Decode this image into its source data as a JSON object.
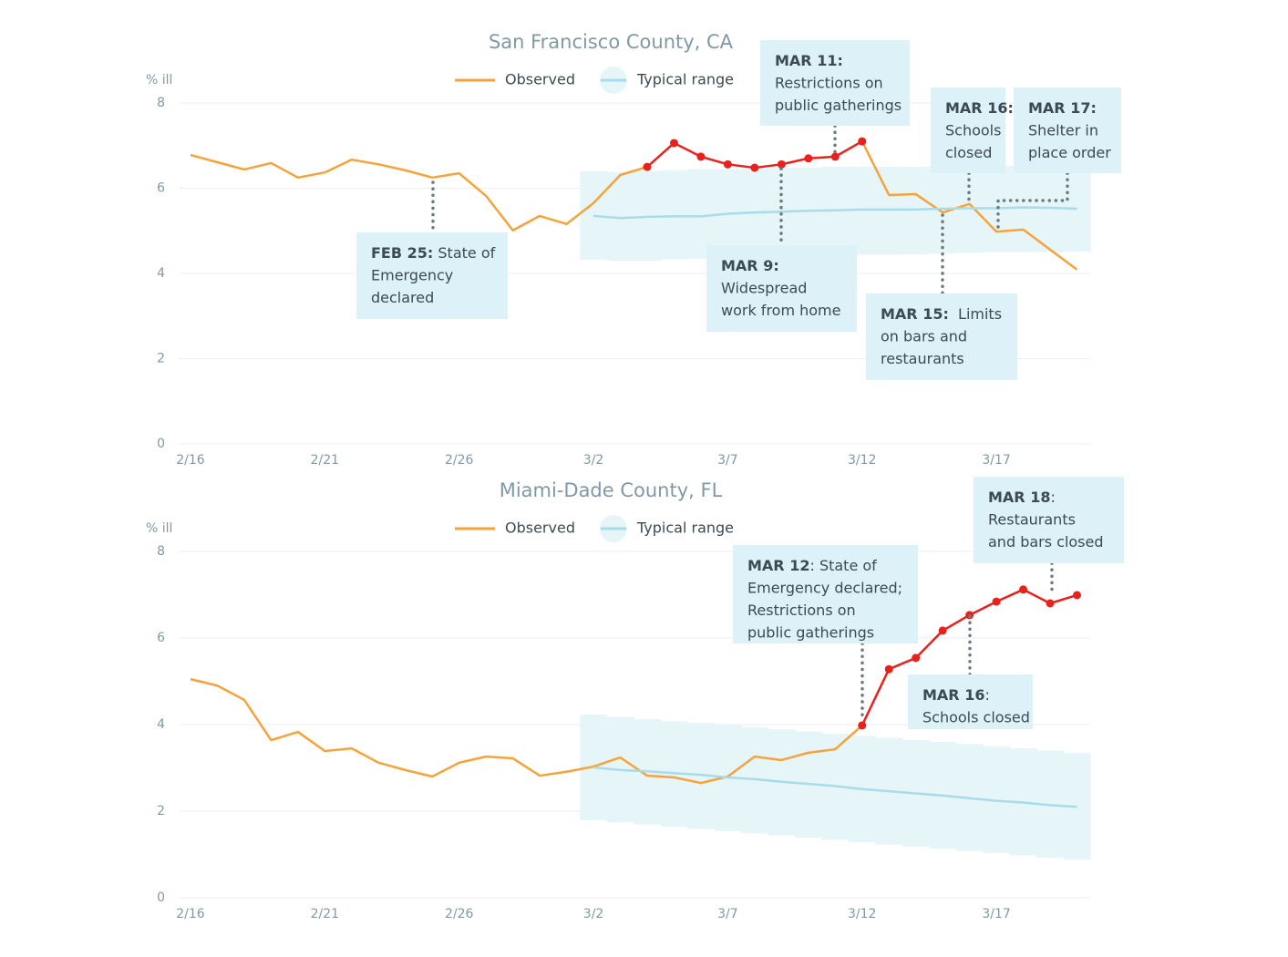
{
  "chart_data": [
    {
      "type": "line",
      "title": "San Francisco County, CA",
      "ylabel": "% ill",
      "categories": [
        "2/16",
        null,
        null,
        null,
        null,
        "2/21",
        null,
        null,
        null,
        null,
        "2/26",
        null,
        null,
        null,
        null,
        "3/2",
        null,
        null,
        null,
        null,
        "3/7",
        null,
        null,
        null,
        null,
        "3/12",
        null,
        null,
        null,
        null,
        "3/17",
        null,
        null,
        null
      ],
      "ylim": [
        0,
        8
      ],
      "yticks": [
        0,
        2,
        4,
        6,
        8
      ],
      "grid": true,
      "highlight_color": "#e8211c",
      "highlight_start": 17,
      "highlight_end": 25,
      "series": [
        {
          "name": "Observed",
          "color": "#f5a33a",
          "values": [
            6.78,
            6.61,
            6.44,
            6.59,
            6.25,
            6.37,
            6.67,
            6.56,
            6.42,
            6.25,
            6.35,
            5.82,
            5.01,
            5.35,
            5.16,
            5.65,
            6.31,
            6.5,
            7.06,
            6.74,
            6.56,
            6.48,
            6.56,
            6.7,
            6.74,
            7.1,
            5.84,
            5.86,
            5.43,
            5.63,
            4.98,
            5.03,
            4.56,
            4.09
          ]
        },
        {
          "name": "Typical range",
          "color": "#a8dcea",
          "band_color": "#e6f5f8",
          "values": [
            null,
            null,
            null,
            null,
            null,
            null,
            null,
            null,
            null,
            null,
            null,
            null,
            null,
            null,
            null,
            5.35,
            5.3,
            5.33,
            5.34,
            5.34,
            5.4,
            5.43,
            5.45,
            5.47,
            5.48,
            5.5,
            5.5,
            5.5,
            5.52,
            5.53,
            5.53,
            5.55,
            5.54,
            5.52
          ],
          "upper": [
            null,
            null,
            null,
            null,
            null,
            null,
            null,
            null,
            null,
            null,
            null,
            null,
            null,
            null,
            null,
            6.4,
            6.38,
            6.4,
            6.42,
            6.45,
            6.45,
            6.47,
            6.48,
            6.48,
            6.5,
            6.5,
            6.5,
            6.5,
            6.52,
            6.52,
            6.52,
            6.52,
            6.52,
            6.52
          ],
          "lower": [
            null,
            null,
            null,
            null,
            null,
            null,
            null,
            null,
            null,
            null,
            null,
            null,
            null,
            null,
            null,
            4.32,
            4.3,
            4.3,
            4.33,
            4.35,
            4.37,
            4.38,
            4.4,
            4.4,
            4.42,
            4.44,
            4.44,
            4.45,
            4.47,
            4.48,
            4.5,
            4.5,
            4.5,
            4.51
          ]
        }
      ],
      "annotations": [
        {
          "label": "FEB 25:",
          "lines": [
            " State of",
            "Emergency",
            "declared"
          ]
        },
        {
          "label": "MAR 9:",
          "lines": [
            "Widespread",
            "work from home"
          ]
        },
        {
          "label": "MAR 11:",
          "lines": [
            "Restrictions on",
            "public gatherings"
          ]
        },
        {
          "label": "MAR 15:",
          "lines": [
            "  Limits",
            "on bars and",
            "restaurants"
          ]
        },
        {
          "label": "MAR 16:",
          "lines": [
            "Schools",
            "closed"
          ]
        },
        {
          "label": "MAR 17:",
          "lines": [
            "Shelter in",
            "place order"
          ]
        }
      ]
    },
    {
      "type": "line",
      "title": "Miami-Dade County, FL",
      "ylabel": "% ill",
      "categories": [
        "2/16",
        null,
        null,
        null,
        null,
        "2/21",
        null,
        null,
        null,
        null,
        "2/26",
        null,
        null,
        null,
        null,
        "3/2",
        null,
        null,
        null,
        null,
        "3/7",
        null,
        null,
        null,
        null,
        "3/12",
        null,
        null,
        null,
        null,
        "3/17",
        null,
        null,
        null
      ],
      "ylim": [
        0,
        8
      ],
      "yticks": [
        0,
        2,
        4,
        6,
        8
      ],
      "grid": true,
      "highlight_color": "#e8211c",
      "highlight_start": 25,
      "highlight_end": 33,
      "series": [
        {
          "name": "Observed",
          "color": "#f5a33a",
          "values": [
            5.05,
            4.9,
            4.57,
            3.64,
            3.83,
            3.39,
            3.45,
            3.12,
            2.95,
            2.8,
            3.12,
            3.26,
            3.22,
            2.82,
            2.91,
            3.03,
            3.24,
            2.82,
            2.78,
            2.65,
            2.8,
            3.26,
            3.18,
            3.35,
            3.43,
            3.98,
            5.28,
            5.54,
            6.17,
            6.53,
            6.84,
            7.12,
            6.8,
            6.99
          ]
        },
        {
          "name": "Typical range",
          "color": "#a8dcea",
          "band_color": "#e6f5f8",
          "values": [
            null,
            null,
            null,
            null,
            null,
            null,
            null,
            null,
            null,
            null,
            null,
            null,
            null,
            null,
            null,
            3.01,
            2.95,
            2.92,
            2.88,
            2.84,
            2.78,
            2.74,
            2.68,
            2.63,
            2.58,
            2.51,
            2.46,
            2.41,
            2.36,
            2.3,
            2.24,
            2.2,
            2.14,
            2.1
          ],
          "upper": [
            null,
            null,
            null,
            null,
            null,
            null,
            null,
            null,
            null,
            null,
            null,
            null,
            null,
            null,
            null,
            4.23,
            4.18,
            4.13,
            4.08,
            4.04,
            3.99,
            3.94,
            3.89,
            3.84,
            3.79,
            3.74,
            3.69,
            3.64,
            3.6,
            3.55,
            3.5,
            3.45,
            3.4,
            3.35
          ],
          "lower": [
            null,
            null,
            null,
            null,
            null,
            null,
            null,
            null,
            null,
            null,
            null,
            null,
            null,
            null,
            null,
            1.79,
            1.74,
            1.69,
            1.64,
            1.59,
            1.54,
            1.49,
            1.44,
            1.39,
            1.34,
            1.28,
            1.23,
            1.18,
            1.13,
            1.08,
            1.03,
            0.98,
            0.93,
            0.88
          ]
        }
      ],
      "annotations": [
        {
          "label": "MAR 12",
          "lines": [
            ": State of",
            "Emergency declared;",
            "Restrictions on",
            "public gatherings"
          ]
        },
        {
          "label": "MAR 16",
          "lines": [
            ":",
            "Schools closed"
          ]
        },
        {
          "label": "MAR 18",
          "lines": [
            ":",
            "Restaurants",
            "and bars closed"
          ]
        }
      ]
    }
  ]
}
